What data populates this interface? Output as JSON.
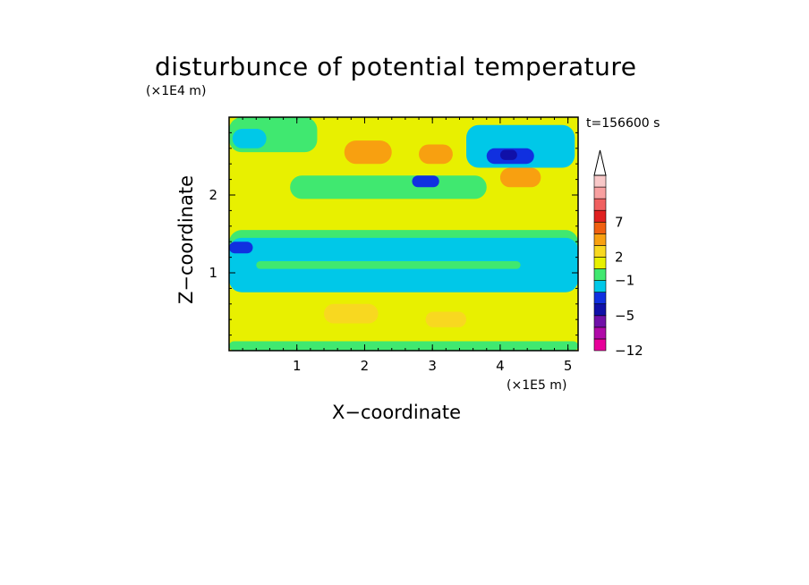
{
  "chart_data": {
    "type": "heatmap",
    "title": "disturbunce of potential temperature",
    "xlabel": "X−coordinate",
    "ylabel": "Z−coordinate",
    "x_scale_label": "(×1E5 m)",
    "y_scale_label": "(×1E4 m)",
    "time_label": "t=156600 s",
    "xlim": [
      0,
      5.15
    ],
    "ylim": [
      0,
      3.0
    ],
    "x_ticks": [
      {
        "v": 1,
        "label": "1"
      },
      {
        "v": 2,
        "label": "2"
      },
      {
        "v": 3,
        "label": "3"
      },
      {
        "v": 4,
        "label": "4"
      },
      {
        "v": 5,
        "label": "5"
      }
    ],
    "y_ticks": [
      {
        "v": 1,
        "label": "1"
      },
      {
        "v": 2,
        "label": "2"
      }
    ],
    "colorbar": {
      "colors": [
        "#e8009a",
        "#b00aa8",
        "#7010a8",
        "#1010a8",
        "#1030e0",
        "#00c8e8",
        "#40e870",
        "#e8f000",
        "#f8d820",
        "#f8a010",
        "#f06010",
        "#e02020",
        "#f06060",
        "#f8a0a0",
        "#f8c8c8"
      ],
      "extend_top": "#ffffff",
      "labels": [
        {
          "index": 0,
          "label": "−12"
        },
        {
          "index": 3,
          "label": "−5"
        },
        {
          "index": 6,
          "label": "−1"
        },
        {
          "index": 8,
          "label": "2"
        },
        {
          "index": 11,
          "label": "7"
        }
      ]
    },
    "regions": [
      {
        "name": "background-yellow",
        "color": "#e8f000",
        "x": [
          0,
          5.15
        ],
        "z": [
          0,
          3.0
        ]
      },
      {
        "name": "band-green-lower",
        "color": "#40e870",
        "x": [
          0,
          5.15
        ],
        "z": [
          1.05,
          1.55
        ]
      },
      {
        "name": "band-cyan",
        "color": "#00c8e8",
        "x": [
          0,
          5.15
        ],
        "z": [
          0.75,
          1.45
        ]
      },
      {
        "name": "band-green-mid",
        "color": "#40e870",
        "x": [
          0.4,
          4.3
        ],
        "z": [
          1.05,
          1.15
        ]
      },
      {
        "name": "band-yellow-low",
        "color": "#e8f000",
        "x": [
          0,
          5.15
        ],
        "z": [
          0.1,
          0.72
        ]
      },
      {
        "name": "green-bottom-strip",
        "color": "#40e870",
        "x": [
          0,
          5.15
        ],
        "z": [
          0,
          0.12
        ]
      },
      {
        "name": "orange-low-1",
        "color": "#f8d820",
        "x": [
          1.4,
          2.2
        ],
        "z": [
          0.35,
          0.6
        ]
      },
      {
        "name": "orange-low-2",
        "color": "#f8d820",
        "x": [
          2.9,
          3.5
        ],
        "z": [
          0.3,
          0.5
        ]
      },
      {
        "name": "orange-upper-1",
        "color": "#f8a010",
        "x": [
          1.7,
          2.4
        ],
        "z": [
          2.4,
          2.7
        ]
      },
      {
        "name": "orange-upper-2",
        "color": "#f8a010",
        "x": [
          2.8,
          3.3
        ],
        "z": [
          2.4,
          2.65
        ]
      },
      {
        "name": "orange-upper-3",
        "color": "#f8a010",
        "x": [
          4.0,
          4.6
        ],
        "z": [
          2.1,
          2.35
        ]
      },
      {
        "name": "green-upper-band",
        "color": "#40e870",
        "x": [
          0.9,
          3.8
        ],
        "z": [
          1.95,
          2.25
        ]
      },
      {
        "name": "green-top-left",
        "color": "#40e870",
        "x": [
          0.0,
          1.3
        ],
        "z": [
          2.55,
          3.0
        ]
      },
      {
        "name": "cyan-top-left",
        "color": "#00c8e8",
        "x": [
          0.05,
          0.55
        ],
        "z": [
          2.6,
          2.85
        ]
      },
      {
        "name": "cyan-top-right",
        "color": "#00c8e8",
        "x": [
          3.5,
          5.1
        ],
        "z": [
          2.35,
          2.9
        ]
      },
      {
        "name": "blue-top-right-1",
        "color": "#1030e0",
        "x": [
          3.8,
          4.5
        ],
        "z": [
          2.4,
          2.6
        ]
      },
      {
        "name": "navy-top-right",
        "color": "#1010a8",
        "x": [
          4.0,
          4.25
        ],
        "z": [
          2.45,
          2.58
        ]
      },
      {
        "name": "blue-upper-mid",
        "color": "#1030e0",
        "x": [
          2.7,
          3.1
        ],
        "z": [
          2.1,
          2.25
        ]
      },
      {
        "name": "blue-left-spot",
        "color": "#1030e0",
        "x": [
          0.0,
          0.35
        ],
        "z": [
          1.25,
          1.4
        ]
      }
    ]
  }
}
